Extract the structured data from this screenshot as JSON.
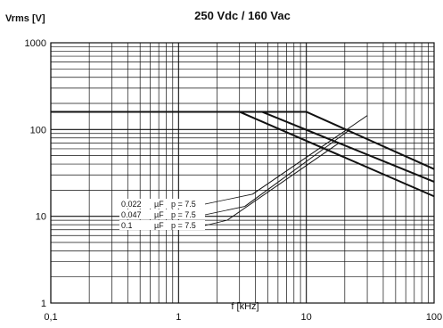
{
  "chart_data": {
    "type": "line",
    "title": "250 Vdc / 160 Vac",
    "ylabel": "Vrms [V]",
    "xlabel": "f [kHz]",
    "x_scale": "log",
    "y_scale": "log",
    "xlim": [
      0.1,
      100
    ],
    "ylim": [
      1,
      1000
    ],
    "grid": true,
    "x_ticks": [
      "0,1",
      "1",
      "10",
      "100"
    ],
    "y_ticks": [
      "1",
      "10",
      "100",
      "1000"
    ],
    "x_tick_values": [
      0.1,
      1,
      10,
      100
    ],
    "y_tick_values": [
      1,
      10,
      100,
      1000
    ],
    "series": [
      {
        "name": "0.022 µF p = 7.5",
        "flat": {
          "x": [
            0.1,
            10
          ],
          "y": [
            160,
            160
          ]
        },
        "slope": {
          "x": [
            10,
            100
          ],
          "y": [
            160,
            35
          ]
        },
        "rising": {
          "x": [
            3.8,
            30
          ],
          "y": [
            18,
            145
          ]
        }
      },
      {
        "name": "0.047 µF p = 7.5",
        "flat": {
          "x": [
            0.1,
            4.5
          ],
          "y": [
            160,
            160
          ]
        },
        "slope": {
          "x": [
            4.5,
            100
          ],
          "y": [
            160,
            25
          ]
        },
        "rising": {
          "x": [
            3.3,
            22
          ],
          "y": [
            13,
            100
          ]
        }
      },
      {
        "name": "0.1 µF p = 7.5",
        "flat": {
          "x": [
            0.1,
            3
          ],
          "y": [
            160,
            160
          ]
        },
        "slope": {
          "x": [
            3,
            100
          ],
          "y": [
            160,
            17
          ]
        },
        "rising": {
          "x": [
            2.4,
            18
          ],
          "y": [
            9,
            70
          ]
        }
      }
    ],
    "annotations": [
      {
        "c": "0.022",
        "u": "µF",
        "p": "p = 7.5"
      },
      {
        "c": "0.047",
        "u": "µF",
        "p": "p = 7.5"
      },
      {
        "c": "0.1",
        "u": "µF",
        "p": "p = 7.5"
      }
    ],
    "colors": {
      "line": "#111111",
      "grid": "#111111",
      "background": "#ffffff"
    }
  }
}
